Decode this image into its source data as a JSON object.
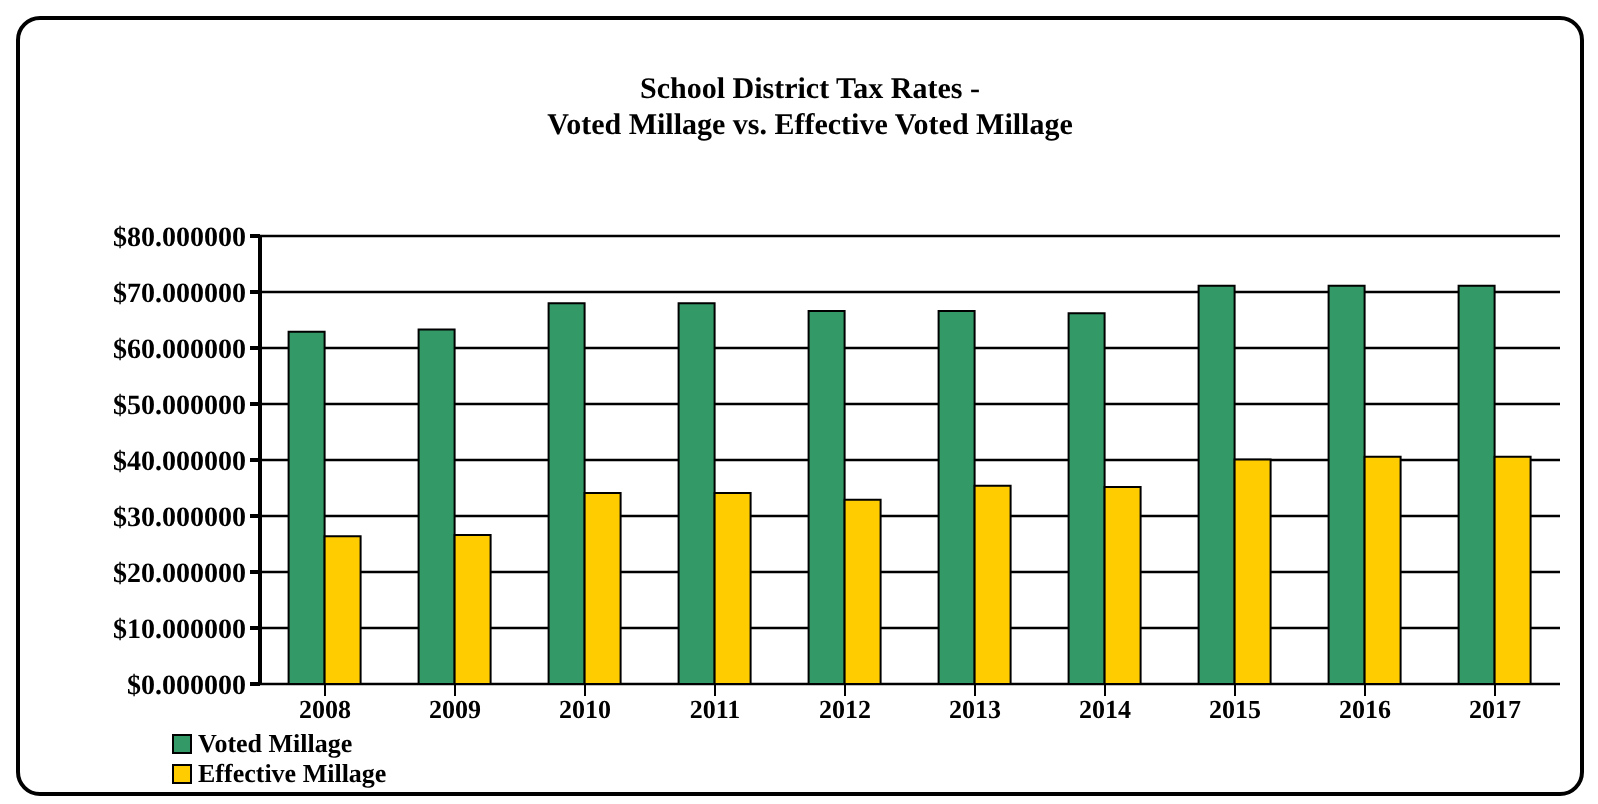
{
  "chart_data": {
    "type": "bar",
    "title": "School District Tax Rates -\nVoted Millage vs. Effective Voted Millage",
    "categories": [
      "2008",
      "2009",
      "2010",
      "2011",
      "2012",
      "2013",
      "2014",
      "2015",
      "2016",
      "2017"
    ],
    "series": [
      {
        "name": "Voted Millage",
        "color": "#339966",
        "values": [
          62.9,
          63.3,
          68.0,
          68.0,
          66.6,
          66.6,
          66.2,
          71.1,
          71.1,
          71.1
        ]
      },
      {
        "name": "Effective Millage",
        "color": "#ffcc00",
        "values": [
          26.4,
          26.6,
          34.1,
          34.1,
          32.9,
          35.4,
          35.2,
          40.1,
          40.6,
          40.6
        ]
      }
    ],
    "ylim": [
      0,
      80
    ],
    "yticks": [
      {
        "value": 0,
        "label": "$0.000000"
      },
      {
        "value": 10,
        "label": "$10.000000"
      },
      {
        "value": 20,
        "label": "$20.000000"
      },
      {
        "value": 30,
        "label": "$30.000000"
      },
      {
        "value": 40,
        "label": "$40.000000"
      },
      {
        "value": 50,
        "label": "$50.000000"
      },
      {
        "value": 60,
        "label": "$60.000000"
      },
      {
        "value": 70,
        "label": "$70.000000"
      },
      {
        "value": 80,
        "label": "$80.000000"
      }
    ],
    "grid": "y",
    "legend": "bottom"
  }
}
